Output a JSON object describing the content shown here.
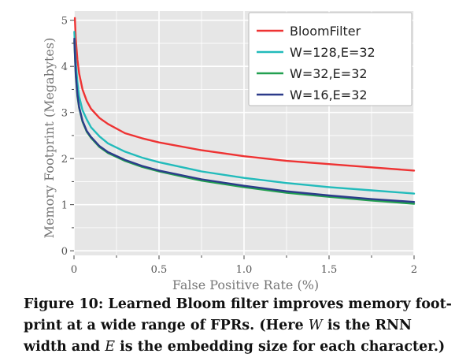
{
  "chart_data": {
    "type": "line",
    "xlabel": "False Positive Rate (%)",
    "ylabel": "Memory Footprint (Megabytes)",
    "xlim": [
      0,
      2
    ],
    "ylim": [
      -0.1,
      5.2
    ],
    "x_ticks": [
      0,
      0.5,
      1.0,
      1.5,
      2
    ],
    "x_tick_labels": [
      "0",
      "0.5",
      "1.0",
      "1.5",
      "2"
    ],
    "y_ticks": [
      0,
      1,
      2,
      3,
      4,
      5
    ],
    "y_tick_labels": [
      "0",
      "1",
      "2",
      "3",
      "4",
      "5"
    ],
    "grid": true,
    "legend_position": "top-right",
    "series": [
      {
        "name": "BloomFilter",
        "color": "#ee3333",
        "x": [
          0.005,
          0.01,
          0.02,
          0.03,
          0.05,
          0.075,
          0.1,
          0.15,
          0.2,
          0.3,
          0.4,
          0.5,
          0.75,
          1.0,
          1.25,
          1.5,
          1.75,
          2.0
        ],
        "y": [
          5.05,
          4.6,
          4.15,
          3.85,
          3.5,
          3.25,
          3.08,
          2.88,
          2.75,
          2.55,
          2.44,
          2.35,
          2.18,
          2.05,
          1.95,
          1.88,
          1.81,
          1.74
        ]
      },
      {
        "name": "W=128,E=32",
        "color": "#22bbbb",
        "x": [
          0.002,
          0.01,
          0.02,
          0.03,
          0.05,
          0.075,
          0.1,
          0.15,
          0.2,
          0.3,
          0.4,
          0.5,
          0.75,
          1.0,
          1.25,
          1.5,
          1.75,
          2.0
        ],
        "y": [
          4.75,
          4.1,
          3.65,
          3.35,
          3.05,
          2.85,
          2.68,
          2.48,
          2.33,
          2.15,
          2.02,
          1.92,
          1.72,
          1.58,
          1.47,
          1.38,
          1.31,
          1.24
        ]
      },
      {
        "name": "W=32,E=32",
        "color": "#22a050",
        "x": [
          0.002,
          0.01,
          0.02,
          0.03,
          0.05,
          0.075,
          0.1,
          0.15,
          0.2,
          0.3,
          0.4,
          0.5,
          0.75,
          1.0,
          1.25,
          1.5,
          1.75,
          2.0
        ],
        "y": [
          4.55,
          3.8,
          3.35,
          3.1,
          2.8,
          2.58,
          2.45,
          2.25,
          2.12,
          1.95,
          1.82,
          1.72,
          1.52,
          1.38,
          1.26,
          1.17,
          1.09,
          1.02
        ]
      },
      {
        "name": "W=16,E=32",
        "color": "#2c3b8a",
        "x": [
          0.002,
          0.01,
          0.02,
          0.03,
          0.05,
          0.075,
          0.1,
          0.15,
          0.2,
          0.3,
          0.4,
          0.5,
          0.75,
          1.0,
          1.25,
          1.5,
          1.75,
          2.0
        ],
        "y": [
          4.6,
          3.85,
          3.4,
          3.12,
          2.82,
          2.6,
          2.47,
          2.27,
          2.14,
          1.97,
          1.84,
          1.74,
          1.55,
          1.41,
          1.29,
          1.2,
          1.12,
          1.06
        ]
      }
    ]
  },
  "caption": {
    "text_before_w": "Figure 10: Learned Bloom filter improves memory foot-print at a wide range of FPRs. (Here ",
    "var_w": "W",
    "text_between": " is the RNN width and ",
    "var_e": "E",
    "text_after_e": " is the embedding size for each character.)"
  }
}
